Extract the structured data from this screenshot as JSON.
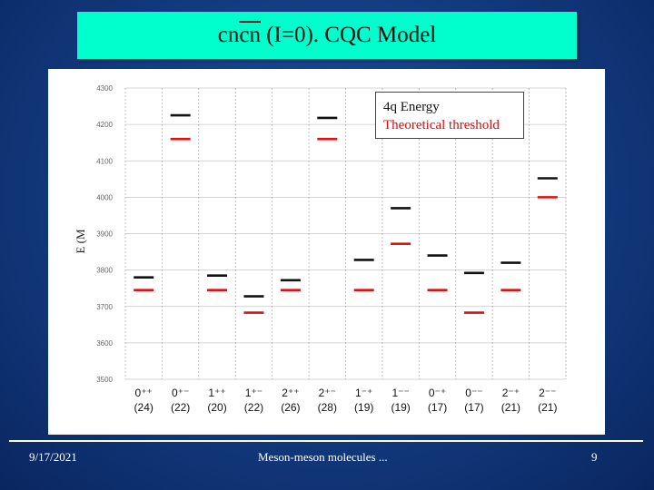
{
  "slide": {
    "title_prefix": "cn",
    "title_over": "cn",
    "title_suffix": " (I=0). CQC Model",
    "footer_date": "9/17/2021",
    "footer_center": "Meson-meson molecules ...",
    "footer_page": "9"
  },
  "colors": {
    "background": "#123a7e",
    "title_box": "#00ffcc",
    "energy_line": "#111111",
    "threshold_line": "#dd1111",
    "grid": "#999999"
  },
  "chart_data": {
    "type": "scatter",
    "ylabel": "E (M",
    "ylim": [
      3500,
      4300
    ],
    "yticks": [
      "4300",
      "4200",
      "4100",
      "4000",
      "3900",
      "3800",
      "3700",
      "3600",
      "3500"
    ],
    "legend": {
      "position": "top-right",
      "items": [
        "4q Energy",
        "Theoretical threshold"
      ]
    },
    "categories": [
      {
        "q": "0⁺⁺",
        "n": "(24)"
      },
      {
        "q": "0⁺⁻",
        "n": "(22)"
      },
      {
        "q": "1⁺⁺",
        "n": "(20)"
      },
      {
        "q": "1⁺⁻",
        "n": "(22)"
      },
      {
        "q": "2⁺⁺",
        "n": "(26)"
      },
      {
        "q": "2⁺⁻",
        "n": "(28)"
      },
      {
        "q": "1⁻⁺",
        "n": "(19)"
      },
      {
        "q": "1⁻⁻",
        "n": "(19)"
      },
      {
        "q": "0⁻⁺",
        "n": "(17)"
      },
      {
        "q": "0⁻⁻",
        "n": "(17)"
      },
      {
        "q": "2⁻⁺",
        "n": "(21)"
      },
      {
        "q": "2⁻⁻",
        "n": "(21)"
      }
    ],
    "series": [
      {
        "name": "4q Energy",
        "values": [
          3780,
          4225,
          3785,
          3728,
          3772,
          4218,
          3828,
          3970,
          3840,
          3792,
          3820,
          4052
        ]
      },
      {
        "name": "Theoretical threshold",
        "values": [
          3745,
          4160,
          3745,
          3683,
          3745,
          4160,
          3745,
          3872,
          3745,
          3683,
          3745,
          4000
        ]
      }
    ]
  }
}
